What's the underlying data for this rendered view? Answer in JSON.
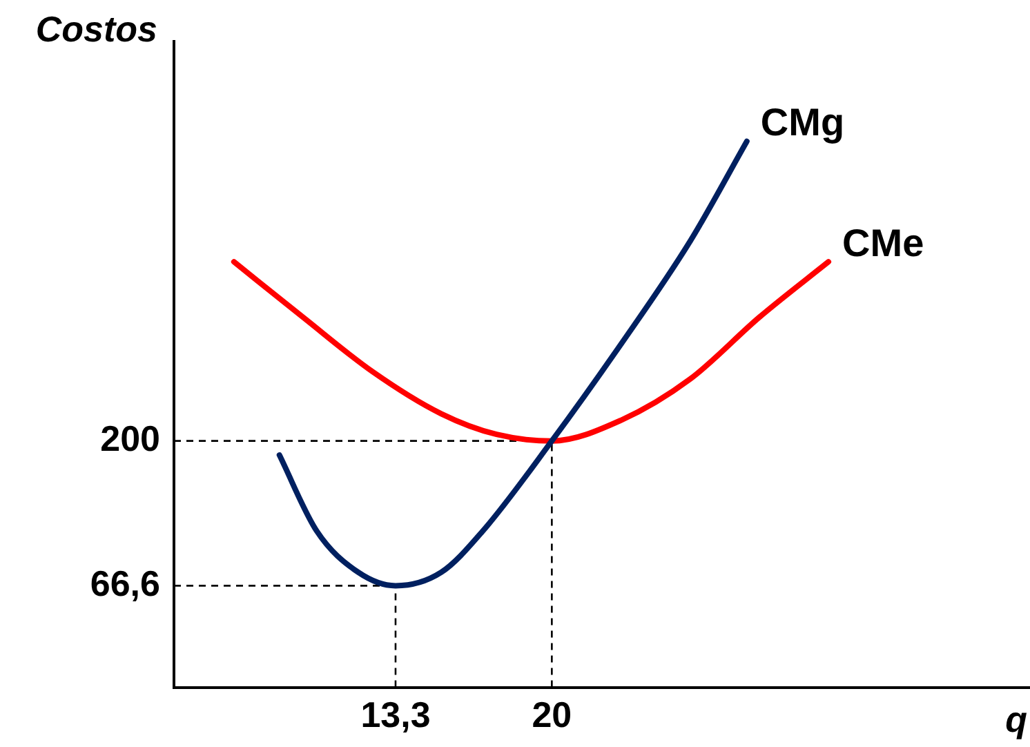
{
  "chart_data": {
    "type": "line",
    "xlabel": "q",
    "ylabel": "Costos",
    "xlim": [
      3.8,
      40.5
    ],
    "ylim": [
      -27,
      568
    ],
    "xticks": [
      {
        "value": 13.3,
        "label": "13,3"
      },
      20
    ],
    "yticks": [
      {
        "value": 66.6,
        "label": "66,6"
      },
      200
    ],
    "series": [
      {
        "name": "CMg",
        "color": "#002060",
        "x": [
          8.32,
          9.92,
          11.7,
          13.3,
          15.26,
          17.04,
          20,
          22.96,
          25.93,
          28.36
        ],
        "values": [
          187,
          117,
          79,
          66.6,
          79,
          117,
          200,
          289,
          384,
          476
        ]
      },
      {
        "name": "CMe",
        "color": "#ff0000",
        "x": [
          6.37,
          9.33,
          12.3,
          15.26,
          17.63,
          20,
          22.96,
          25.93,
          28.9,
          31.86
        ],
        "values": [
          365,
          314,
          264,
          225,
          206,
          200,
          219,
          257,
          314,
          365
        ]
      }
    ],
    "ref_lines": [
      {
        "axis": "y",
        "value": 200,
        "line_style": "dashed",
        "color": "#000000"
      },
      {
        "axis": "y",
        "value": 66.6,
        "line_style": "dashed",
        "color": "#000000"
      },
      {
        "axis": "x",
        "value": 20,
        "line_style": "dashed",
        "color": "#000000"
      },
      {
        "axis": "x",
        "value": 13.3,
        "line_style": "dashed",
        "color": "#000000"
      }
    ],
    "grid": false,
    "legend": false,
    "marker": "none",
    "line_style": "solid"
  }
}
